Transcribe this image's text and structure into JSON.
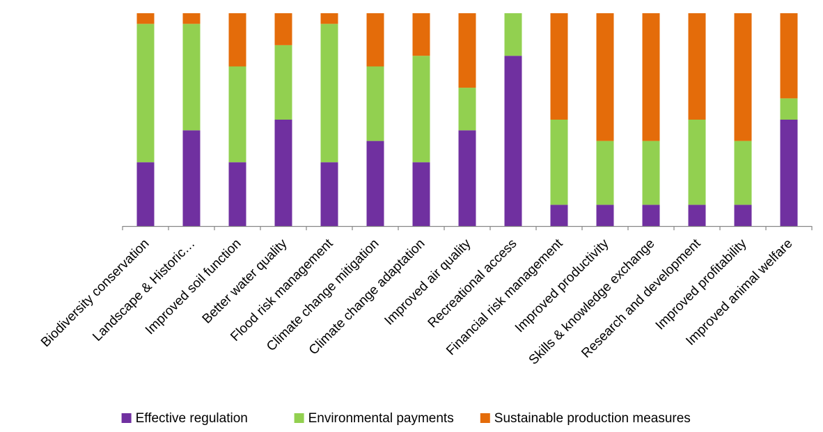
{
  "chart_data": {
    "type": "bar",
    "stacked": true,
    "normalized": true,
    "categories": [
      "Biodiversity conservation",
      "Landscape & Historic…",
      "Improved soil function",
      "Better water quality",
      "Flood risk management",
      "Climate change mitigation",
      "Climate change adaptation",
      "Improved air quality",
      "Recreational access",
      "Financial risk management",
      "Improved productivity",
      "Skills & knowledge exchange",
      "Research and development",
      "Improved profitability",
      "Improved animal welfare"
    ],
    "series": [
      {
        "name": "Effective regulation",
        "color": "#7030A0",
        "values": [
          0.3,
          0.45,
          0.3,
          0.5,
          0.3,
          0.4,
          0.3,
          0.45,
          0.8,
          0.1,
          0.1,
          0.1,
          0.1,
          0.1,
          0.5
        ]
      },
      {
        "name": "Environmental payments",
        "color": "#92D050",
        "values": [
          0.65,
          0.5,
          0.45,
          0.35,
          0.65,
          0.35,
          0.5,
          0.2,
          0.2,
          0.4,
          0.3,
          0.3,
          0.4,
          0.3,
          0.1
        ]
      },
      {
        "name": "Sustainable production measures",
        "color": "#E46C0A",
        "values": [
          0.05,
          0.05,
          0.25,
          0.15,
          0.05,
          0.25,
          0.2,
          0.35,
          0.0,
          0.5,
          0.6,
          0.6,
          0.5,
          0.6,
          0.4
        ]
      }
    ],
    "ylim": [
      0,
      1
    ],
    "grid": false,
    "legend_position": "bottom"
  }
}
